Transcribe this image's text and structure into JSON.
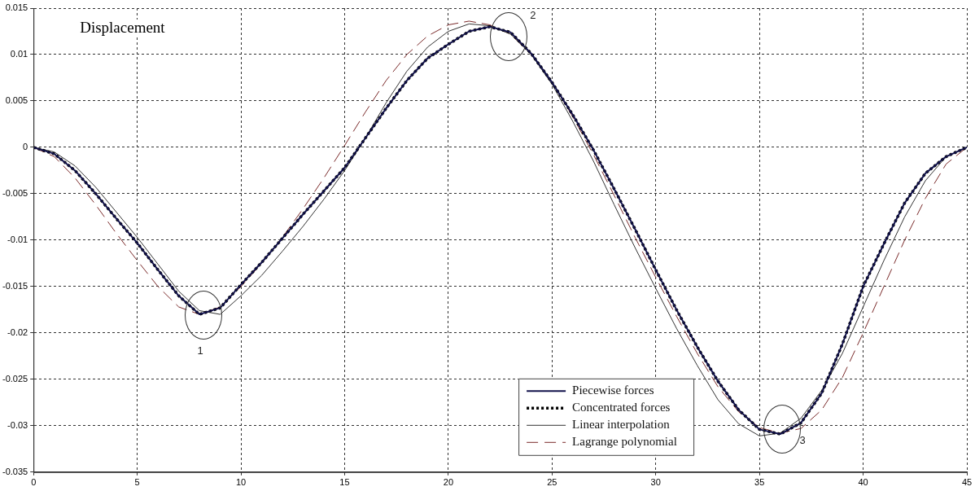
{
  "chart_data": {
    "type": "line",
    "title": "Displacement",
    "x": [
      0,
      1,
      2,
      3,
      4,
      5,
      6,
      7,
      8,
      9,
      10,
      11,
      12,
      13,
      14,
      15,
      16,
      17,
      18,
      19,
      20,
      21,
      22,
      23,
      24,
      25,
      26,
      27,
      28,
      29,
      30,
      31,
      32,
      33,
      34,
      35,
      36,
      37,
      38,
      39,
      40,
      41,
      42,
      43,
      44,
      45
    ],
    "series": [
      {
        "name": "Piecewise forces",
        "color": "#10104a",
        "line_style": "solid",
        "values": [
          0,
          -0.0007,
          -0.0025,
          -0.005,
          -0.0077,
          -0.0103,
          -0.0132,
          -0.016,
          -0.018,
          -0.0173,
          -0.0148,
          -0.0124,
          -0.0098,
          -0.0072,
          -0.0047,
          -0.0022,
          0.001,
          0.0042,
          0.0072,
          0.0096,
          0.0111,
          0.0125,
          0.013,
          0.0124,
          0.0101,
          0.007,
          0.0035,
          -0.0003,
          -0.0045,
          -0.0088,
          -0.0132,
          -0.0175,
          -0.0215,
          -0.0252,
          -0.0283,
          -0.0304,
          -0.0309,
          -0.0297,
          -0.0265,
          -0.0212,
          -0.015,
          -0.0104,
          -0.006,
          -0.0028,
          -0.001,
          0
        ]
      },
      {
        "name": "Concentrated forces",
        "color": "#000000",
        "line_style": "dotted",
        "values": [
          0,
          -0.0007,
          -0.0025,
          -0.005,
          -0.0077,
          -0.0103,
          -0.0132,
          -0.016,
          -0.018,
          -0.0173,
          -0.0148,
          -0.0124,
          -0.0098,
          -0.0072,
          -0.0047,
          -0.0022,
          0.001,
          0.0042,
          0.0072,
          0.0096,
          0.0111,
          0.0125,
          0.013,
          0.0124,
          0.0101,
          0.007,
          0.0035,
          -0.0003,
          -0.0045,
          -0.0088,
          -0.0132,
          -0.0175,
          -0.0215,
          -0.0252,
          -0.0283,
          -0.0304,
          -0.0309,
          -0.0297,
          -0.0265,
          -0.0212,
          -0.015,
          -0.0104,
          -0.006,
          -0.0028,
          -0.001,
          0
        ]
      },
      {
        "name": "Linear interpolation",
        "color": "#333333",
        "line_style": "solid",
        "values": [
          0,
          -0.0005,
          -0.002,
          -0.0043,
          -0.007,
          -0.0097,
          -0.0126,
          -0.0155,
          -0.0176,
          -0.018,
          -0.016,
          -0.0138,
          -0.0112,
          -0.0085,
          -0.0056,
          -0.0025,
          0.001,
          0.0048,
          0.0082,
          0.0108,
          0.0125,
          0.0133,
          0.0131,
          0.0122,
          0.01,
          0.0068,
          0.0028,
          -0.0015,
          -0.0062,
          -0.0108,
          -0.0152,
          -0.0195,
          -0.0235,
          -0.0272,
          -0.0298,
          -0.0311,
          -0.0308,
          -0.0292,
          -0.0262,
          -0.0222,
          -0.0172,
          -0.0122,
          -0.0075,
          -0.0036,
          -0.001,
          0
        ]
      },
      {
        "name": "Lagrange polynomial",
        "color": "#7a2a2a",
        "line_style": "dashed",
        "values": [
          0,
          -0.001,
          -0.0033,
          -0.0062,
          -0.0093,
          -0.0122,
          -0.015,
          -0.0172,
          -0.018,
          -0.0172,
          -0.015,
          -0.0125,
          -0.0097,
          -0.0066,
          -0.0033,
          0.0002,
          0.0038,
          0.0072,
          0.01,
          0.012,
          0.0132,
          0.0136,
          0.0132,
          0.0122,
          0.01,
          0.007,
          0.0033,
          -0.0008,
          -0.0052,
          -0.0097,
          -0.014,
          -0.0182,
          -0.0222,
          -0.0258,
          -0.0285,
          -0.0302,
          -0.0308,
          -0.0303,
          -0.0283,
          -0.0248,
          -0.02,
          -0.015,
          -0.01,
          -0.0055,
          -0.0018,
          0
        ]
      }
    ],
    "xlim": [
      0,
      45
    ],
    "xticks": [
      0,
      5,
      10,
      15,
      20,
      25,
      30,
      35,
      40,
      45
    ],
    "ylim": [
      -0.035,
      0.015
    ],
    "yticks": [
      -0.035,
      -0.03,
      -0.025,
      -0.02,
      -0.015,
      -0.01,
      -0.005,
      0,
      0.005,
      0.01,
      0.015
    ],
    "grid": true,
    "legend": "bottom",
    "marker": "none",
    "annotations": [
      {
        "text": "1",
        "x": 8.2,
        "y": -0.0181
      },
      {
        "text": "2",
        "x": 22.9,
        "y": 0.0119
      },
      {
        "text": "3",
        "x": 36.1,
        "y": -0.0304
      }
    ]
  }
}
